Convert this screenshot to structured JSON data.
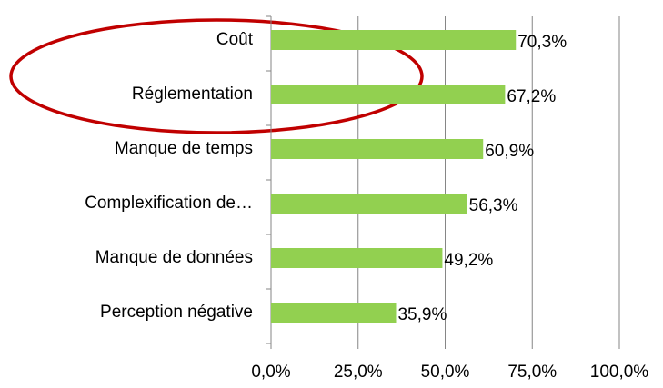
{
  "chart_data": {
    "type": "bar",
    "orientation": "horizontal",
    "categories": [
      "Coût",
      "Réglementation",
      "Manque de temps",
      "Complexification de…",
      "Manque de données",
      "Perception négative"
    ],
    "values": [
      70.3,
      67.2,
      60.9,
      56.3,
      49.2,
      35.9
    ],
    "value_labels": [
      "70,3%",
      "67,2%",
      "60,9%",
      "56,3%",
      "49,2%",
      "35,9%"
    ],
    "color": "#92d050",
    "xlim": [
      0,
      100
    ],
    "xticks": [
      {
        "value": 0,
        "label": "0,0%"
      },
      {
        "value": 25,
        "label": "25,0%"
      },
      {
        "value": 50,
        "label": "50,0%"
      },
      {
        "value": 75,
        "label": "75,0%"
      },
      {
        "value": 100,
        "label": "100,0%"
      }
    ],
    "grid": true
  }
}
